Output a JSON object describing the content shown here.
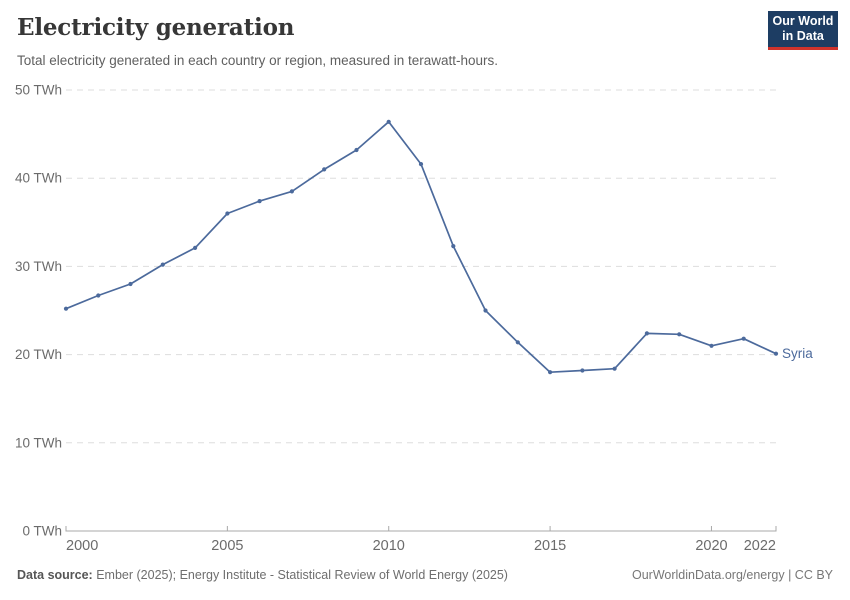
{
  "header": {
    "title": "Electricity generation",
    "subtitle": "Total electricity generated in each country or region, measured in terawatt-hours.",
    "logo": {
      "line1": "Our World",
      "line2": "in Data",
      "bg_color": "#1d3d63",
      "accent_color": "#cf332c"
    }
  },
  "chart_data": {
    "type": "line",
    "title": "Electricity generation",
    "subtitle": "Total electricity generated in each country or region, measured in terawatt-hours.",
    "x": [
      2000,
      2001,
      2002,
      2003,
      2004,
      2005,
      2006,
      2007,
      2008,
      2009,
      2010,
      2011,
      2012,
      2013,
      2014,
      2015,
      2016,
      2017,
      2018,
      2019,
      2020,
      2021,
      2022
    ],
    "series": [
      {
        "name": "Syria",
        "color": "#4c6a9c",
        "values": [
          25.2,
          26.7,
          28.0,
          30.2,
          32.1,
          36.0,
          37.4,
          38.5,
          41.0,
          43.2,
          46.4,
          41.6,
          32.3,
          25.0,
          21.4,
          18.0,
          18.2,
          18.4,
          22.4,
          22.3,
          21.0,
          21.8,
          20.1
        ]
      }
    ],
    "xlim": [
      2000,
      2022
    ],
    "ylim": [
      0,
      50
    ],
    "x_ticks": [
      2000,
      2005,
      2010,
      2015,
      2020,
      2022
    ],
    "y_ticks": [
      0,
      10,
      20,
      30,
      40,
      50
    ],
    "y_tick_suffix": " TWh",
    "grid": "horizontal dashed",
    "legend": "end-of-line label",
    "colors": {
      "gridline": "#dddddd",
      "axis": "#a8a8a8",
      "tick_label": "#6b6b6b"
    }
  },
  "footer": {
    "source_label": "Data source:",
    "source_text": "Ember (2025); Energy Institute - Statistical Review of World Energy (2025)",
    "credit": "OurWorldinData.org/energy | CC BY"
  }
}
